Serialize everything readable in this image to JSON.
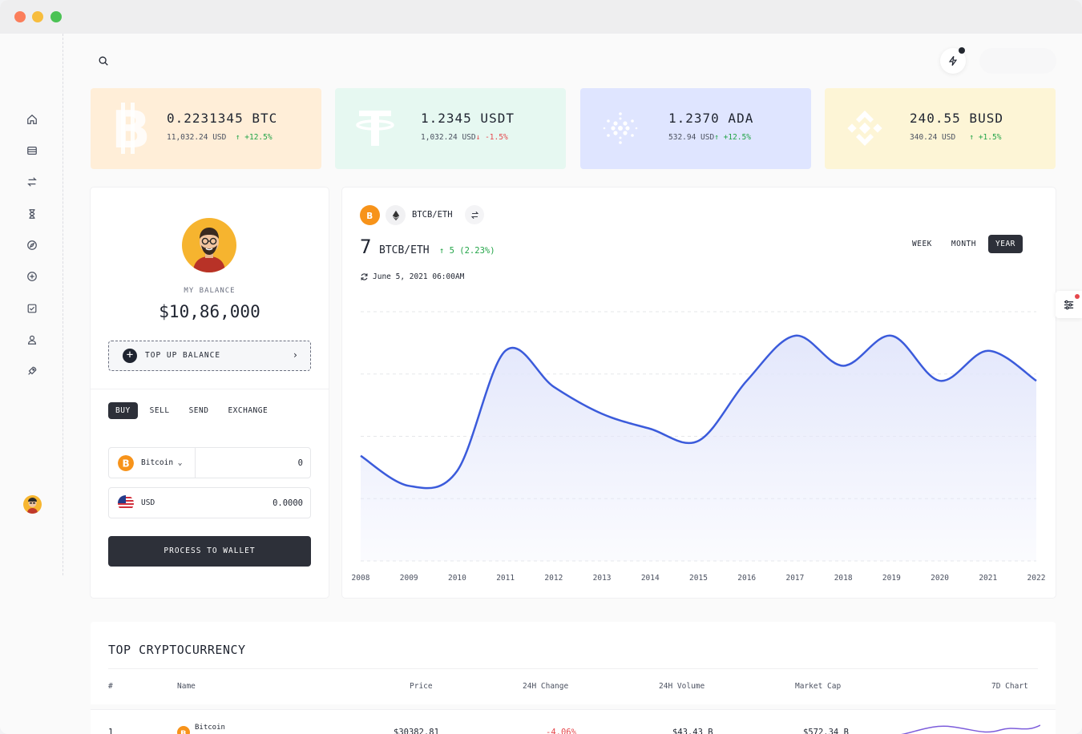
{
  "cards": [
    {
      "amount": "0.2231345 BTC",
      "usd": "11,032.24 USD",
      "change": "↑ +12.5%",
      "direction": "up",
      "bg": "#ffeed8",
      "icon": "bitcoin-icon"
    },
    {
      "amount": "1.2345 USDT",
      "usd": "1,032.24 USD",
      "change": "↓ -1.5%",
      "direction": "down",
      "bg": "#e6f8f1",
      "icon": "tether-icon"
    },
    {
      "amount": "1.2370 ADA",
      "usd": "532.94 USD",
      "change": "↑ +12.5%",
      "direction": "up",
      "bg": "#dfe5ff",
      "icon": "cardano-icon"
    },
    {
      "amount": "240.55 BUSD",
      "usd": "340.24 USD",
      "change": "↑ +1.5%",
      "direction": "up",
      "bg": "#fdf5d6",
      "icon": "binance-icon"
    }
  ],
  "balance": {
    "label": "MY BALANCE",
    "value": "$10,86,000",
    "topup_label": "TOP UP BALANCE",
    "tabs": [
      "BUY",
      "SELL",
      "SEND",
      "EXCHANGE"
    ],
    "active_tab": "BUY",
    "from_currency": "Bitcoin",
    "from_value": "0",
    "to_currency": "USD",
    "to_value": "0.0000",
    "process_label": "PROCESS TO WALLET"
  },
  "chart_header": {
    "pair": "BTCB/ETH",
    "price": "7",
    "price_pair": "BTCB/ETH",
    "change": "↑ 5 (2.23%)",
    "date": "June 5, 2021 06:00AM",
    "ranges": [
      "WEEK",
      "MONTH",
      "YEAR"
    ],
    "active_range": "YEAR"
  },
  "chart_data": {
    "type": "area",
    "x": [
      "2008",
      "2009",
      "2010",
      "2011",
      "2012",
      "2013",
      "2014",
      "2015",
      "2016",
      "2017",
      "2018",
      "2019",
      "2020",
      "2021",
      "2022"
    ],
    "series": [
      {
        "values": [
          3.5,
          2.5,
          3.0,
          7.0,
          5.8,
          4.9,
          4.4,
          4.0,
          6.0,
          7.5,
          6.5,
          7.5,
          6.0,
          7.0,
          6.0
        ]
      }
    ],
    "title": "",
    "xlabel": "",
    "ylabel": "",
    "ylim": [
      0,
      8.3
    ],
    "grid": "horizontal",
    "line_color": "#3b5bdb",
    "fill_color": "#e3e7fb"
  },
  "table": {
    "title": "TOP CRYPTOCURRENCY",
    "headers": {
      "rank": "#",
      "name": "Name",
      "price": "Price",
      "change": "24H Change",
      "volume": "24H Volume",
      "cap": "Market Cap",
      "chart": "7D Chart"
    },
    "rows": [
      {
        "rank": "1",
        "name": "Bitcoin",
        "price": "$30382.81",
        "change": "-4.06%",
        "volume": "$43.43 B",
        "cap": "$572.34 B"
      }
    ]
  },
  "colors": {
    "accent": "#2d3039",
    "up": "#22a447",
    "down": "#e5484d",
    "bitcoin": "#f7931a"
  }
}
